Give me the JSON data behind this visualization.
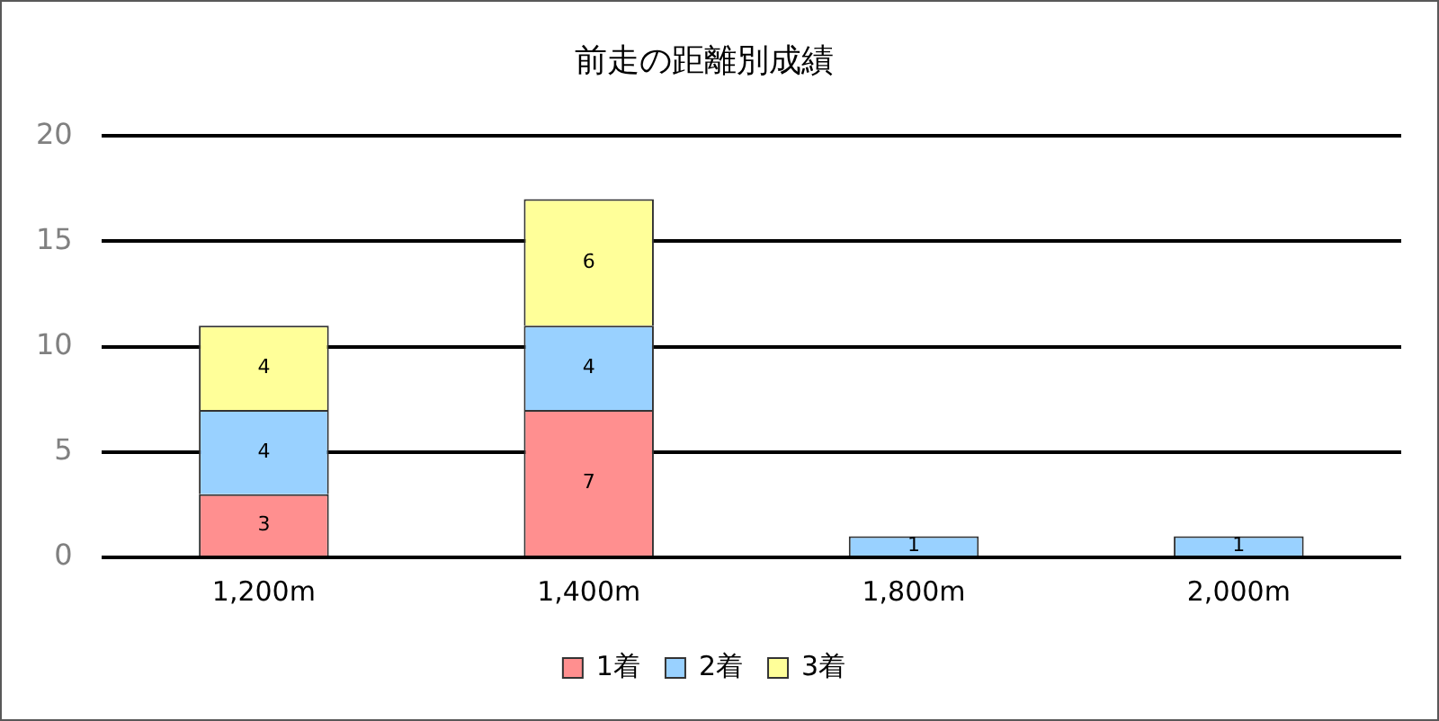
{
  "chart_data": {
    "type": "bar",
    "title": "前走の距離別成績",
    "categories": [
      "1,200m",
      "1,400m",
      "1,800m",
      "2,000m"
    ],
    "series": [
      {
        "name": "1着",
        "color": "#ff8f8f",
        "values": [
          3,
          7,
          0,
          0
        ],
        "value_labels": [
          "3",
          "7",
          null,
          null
        ]
      },
      {
        "name": "2着",
        "color": "#99d1ff",
        "values": [
          4,
          4,
          1,
          1
        ],
        "value_labels": [
          "4",
          "4",
          "1",
          "1"
        ]
      },
      {
        "name": "3着",
        "color": "#ffff99",
        "values": [
          4,
          6,
          0,
          0
        ],
        "value_labels": [
          "4",
          "6",
          null,
          null
        ]
      }
    ],
    "stacked": true,
    "ylim": [
      0,
      20
    ],
    "yticks": [
      0,
      5,
      10,
      15,
      20
    ],
    "grid": "y",
    "legend": "bottom"
  }
}
